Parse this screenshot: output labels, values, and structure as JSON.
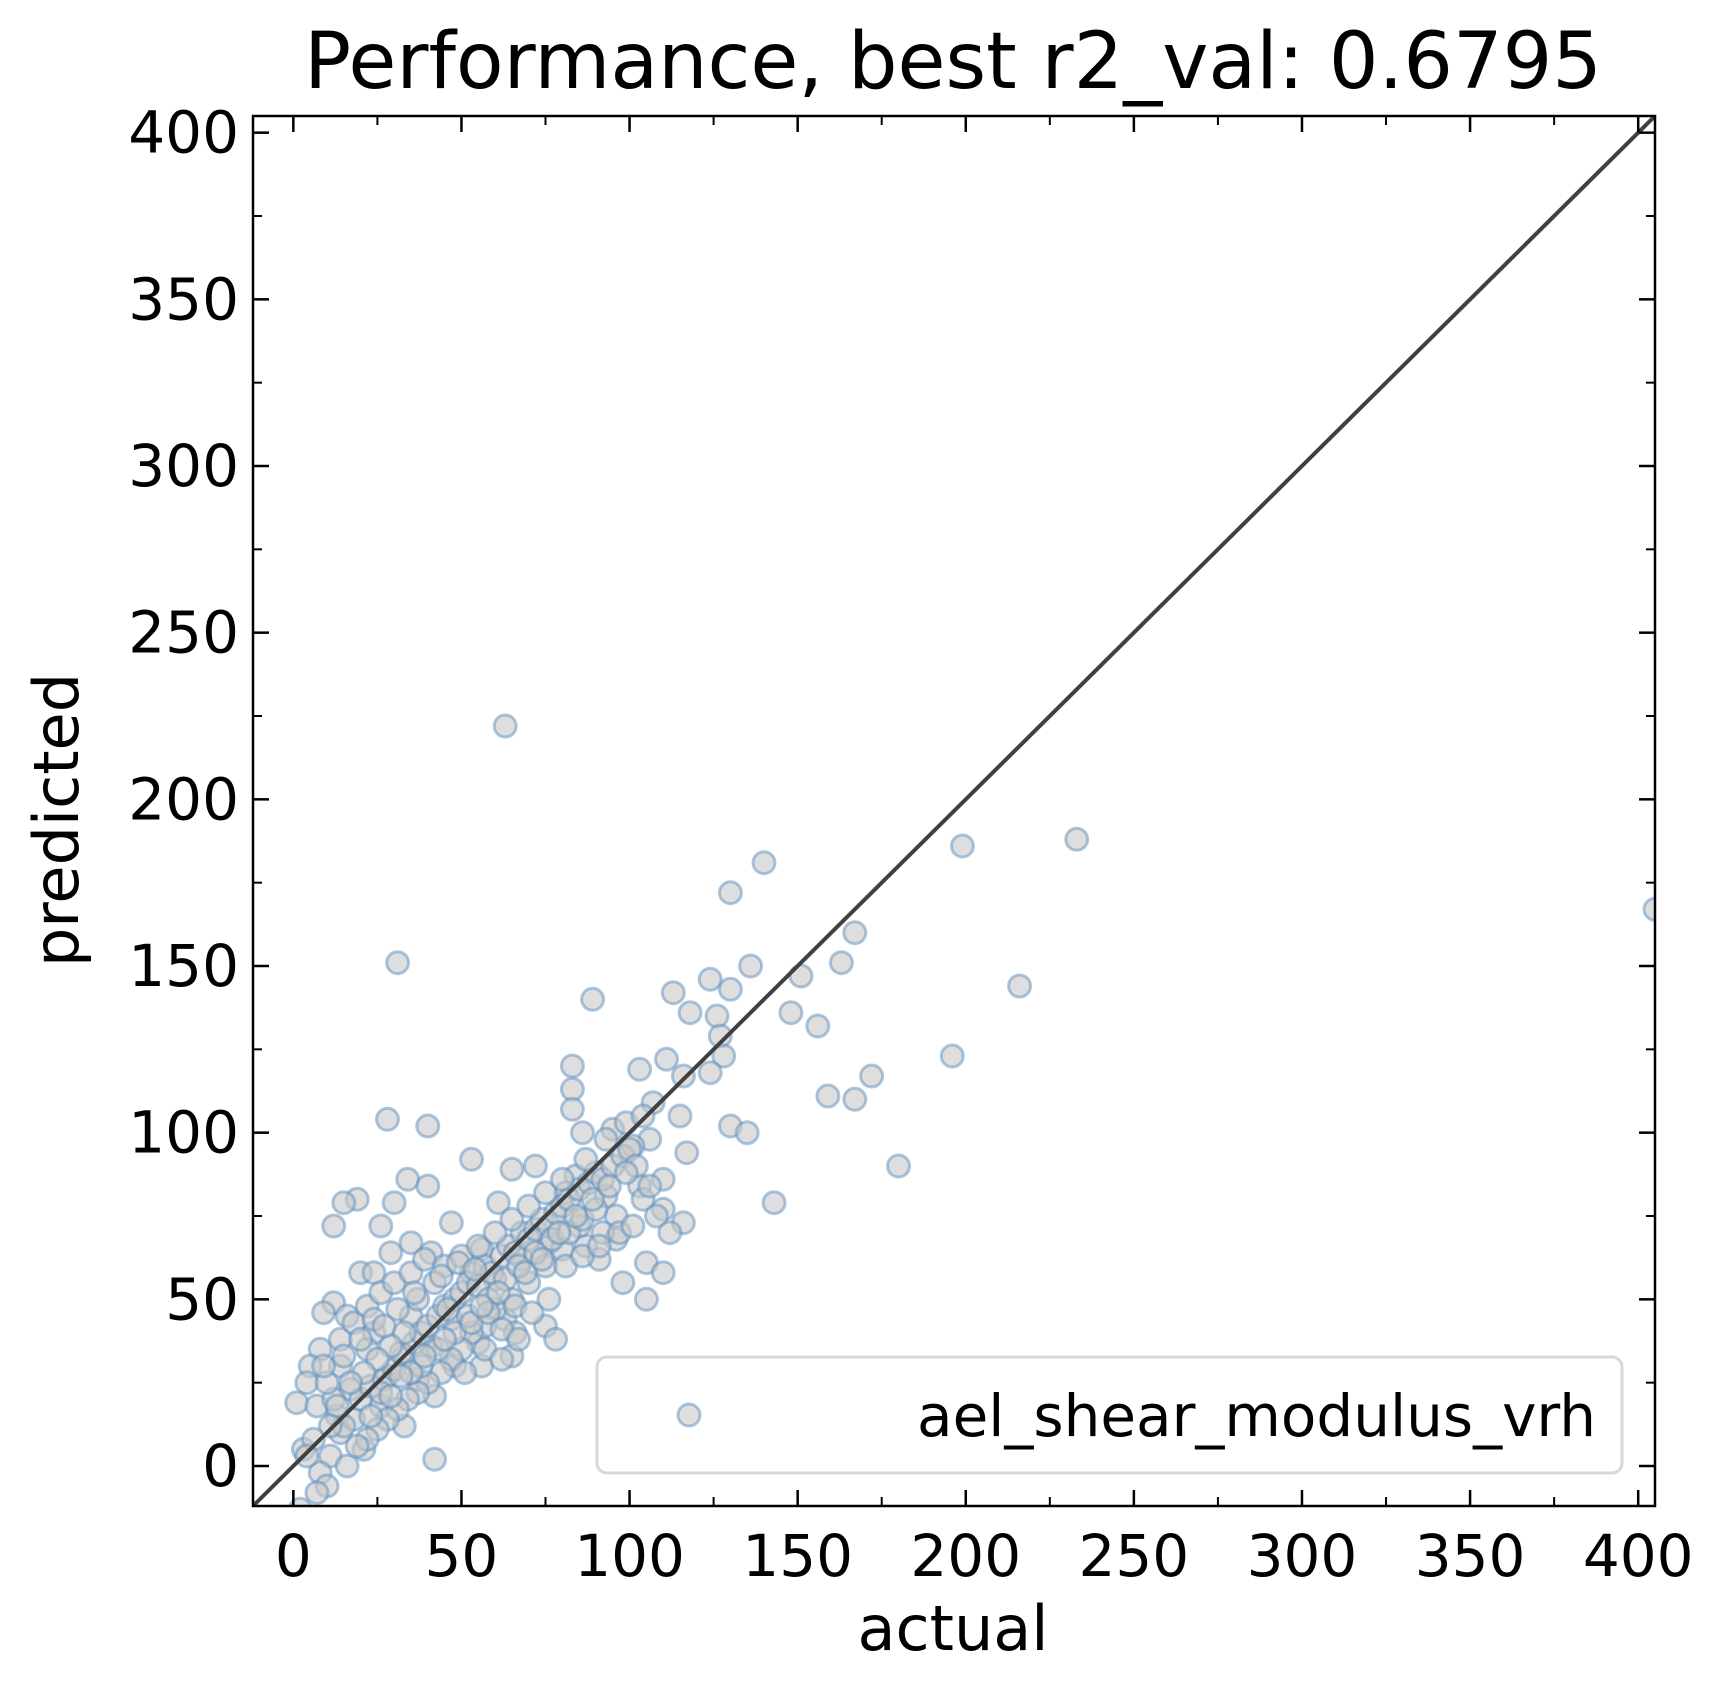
{
  "chart_data": {
    "type": "scatter",
    "title": "Performance, best r2_val: 0.6795",
    "xlabel": "actual",
    "ylabel": "predicted",
    "xlim": [
      -12,
      405
    ],
    "ylim": [
      -12,
      405
    ],
    "xticks": [
      0,
      50,
      100,
      150,
      200,
      250,
      300,
      350,
      400
    ],
    "yticks": [
      0,
      50,
      100,
      150,
      200,
      250,
      300,
      350,
      400
    ],
    "xticks_labels": [
      "0",
      "50",
      "100",
      "150",
      "200",
      "250",
      "300",
      "350",
      "400"
    ],
    "yticks_labels": [
      "0",
      "50",
      "100",
      "150",
      "200",
      "250",
      "300",
      "350",
      "400"
    ],
    "grid": false,
    "legend_position": "lower-right",
    "colors": {
      "marker_fill": "#c8c8c8",
      "marker_edge": "#5b8fbf",
      "identity_line": "#404040",
      "axes": "#000000"
    },
    "identity_line": true,
    "series": [
      {
        "name": "ael_shear_modulus_vrh",
        "points": [
          [
            63,
            222
          ],
          [
            233,
            188
          ],
          [
            199,
            186
          ],
          [
            140,
            181
          ],
          [
            130,
            172
          ],
          [
            405,
            167
          ],
          [
            167,
            160
          ],
          [
            163,
            151
          ],
          [
            136,
            150
          ],
          [
            31,
            151
          ],
          [
            151,
            147
          ],
          [
            124,
            146
          ],
          [
            216,
            144
          ],
          [
            130,
            143
          ],
          [
            113,
            142
          ],
          [
            89,
            140
          ],
          [
            118,
            136
          ],
          [
            148,
            136
          ],
          [
            126,
            135
          ],
          [
            156,
            132
          ],
          [
            127,
            129
          ],
          [
            128,
            123
          ],
          [
            196,
            123
          ],
          [
            111,
            122
          ],
          [
            83,
            120
          ],
          [
            103,
            119
          ],
          [
            124,
            118
          ],
          [
            116,
            117
          ],
          [
            172,
            117
          ],
          [
            83,
            113
          ],
          [
            159,
            111
          ],
          [
            167,
            110
          ],
          [
            107,
            109
          ],
          [
            83,
            107
          ],
          [
            115,
            105
          ],
          [
            28,
            104
          ],
          [
            40,
            102
          ],
          [
            130,
            102
          ],
          [
            95,
            101
          ],
          [
            86,
            100
          ],
          [
            135,
            100
          ],
          [
            106,
            98
          ],
          [
            101,
            96
          ],
          [
            117,
            94
          ],
          [
            53,
            92
          ],
          [
            72,
            90
          ],
          [
            180,
            90
          ],
          [
            65,
            89
          ],
          [
            84,
            87
          ],
          [
            110,
            86
          ],
          [
            34,
            86
          ],
          [
            40,
            84
          ],
          [
            103,
            84
          ],
          [
            81,
            82
          ],
          [
            93,
            81
          ],
          [
            19,
            80
          ],
          [
            15,
            79
          ],
          [
            30,
            79
          ],
          [
            61,
            79
          ],
          [
            143,
            79
          ],
          [
            110,
            77
          ],
          [
            47,
            73
          ],
          [
            12,
            72
          ],
          [
            26,
            72
          ],
          [
            116,
            73
          ],
          [
            96,
            68
          ],
          [
            76,
            67
          ],
          [
            35,
            67
          ],
          [
            87,
            66
          ],
          [
            56,
            65
          ],
          [
            29,
            64
          ],
          [
            41,
            64
          ],
          [
            68,
            62
          ],
          [
            91,
            62
          ],
          [
            105,
            61
          ],
          [
            110,
            58
          ],
          [
            20,
            58
          ],
          [
            24,
            58
          ],
          [
            53,
            58
          ],
          [
            60,
            56
          ],
          [
            98,
            55
          ],
          [
            12,
            49
          ],
          [
            105,
            50
          ],
          [
            9,
            46
          ],
          [
            16,
            45
          ],
          [
            35,
            45
          ],
          [
            47,
            44
          ],
          [
            63,
            44
          ],
          [
            75,
            42
          ],
          [
            24,
            40
          ],
          [
            78,
            38
          ],
          [
            55,
            37
          ],
          [
            66,
            40
          ],
          [
            41,
            36
          ],
          [
            8,
            35
          ],
          [
            22,
            35
          ],
          [
            65,
            33
          ],
          [
            33,
            33
          ],
          [
            5,
            30
          ],
          [
            14,
            30
          ],
          [
            48,
            30
          ],
          [
            56,
            30
          ],
          [
            28,
            27
          ],
          [
            37,
            26
          ],
          [
            4,
            25
          ],
          [
            17,
            23
          ],
          [
            42,
            21
          ],
          [
            1,
            19
          ],
          [
            7,
            18
          ],
          [
            26,
            18
          ],
          [
            13,
            15
          ],
          [
            33,
            12
          ],
          [
            3,
            5
          ],
          [
            21,
            5
          ],
          [
            11,
            3
          ],
          [
            42,
            2
          ],
          [
            16,
            0
          ],
          [
            8,
            -2
          ],
          [
            10,
            -6
          ],
          [
            7,
            -8
          ],
          [
            2,
            -13
          ],
          [
            14,
            10
          ],
          [
            18,
            14
          ],
          [
            20,
            20
          ],
          [
            23,
            24
          ],
          [
            27,
            26
          ],
          [
            30,
            29
          ],
          [
            32,
            34
          ],
          [
            36,
            37
          ],
          [
            38,
            40
          ],
          [
            40,
            42
          ],
          [
            43,
            45
          ],
          [
            45,
            48
          ],
          [
            48,
            50
          ],
          [
            50,
            52
          ],
          [
            52,
            55
          ],
          [
            55,
            54
          ],
          [
            57,
            60
          ],
          [
            59,
            58
          ],
          [
            62,
            63
          ],
          [
            64,
            66
          ],
          [
            66,
            64
          ],
          [
            68,
            70
          ],
          [
            70,
            68
          ],
          [
            72,
            71
          ],
          [
            74,
            74
          ],
          [
            76,
            72
          ],
          [
            78,
            76
          ],
          [
            80,
            78
          ],
          [
            82,
            80
          ],
          [
            85,
            83
          ],
          [
            88,
            85
          ],
          [
            90,
            88
          ],
          [
            92,
            86
          ],
          [
            95,
            90
          ],
          [
            98,
            93
          ],
          [
            100,
            95
          ],
          [
            102,
            90
          ],
          [
            104,
            80
          ],
          [
            108,
            75
          ],
          [
            112,
            70
          ],
          [
            96,
            75
          ],
          [
            92,
            70
          ],
          [
            85,
            72
          ],
          [
            80,
            65
          ],
          [
            75,
            60
          ],
          [
            70,
            55
          ],
          [
            65,
            50
          ],
          [
            60,
            47
          ],
          [
            57,
            42
          ],
          [
            53,
            40
          ],
          [
            50,
            35
          ],
          [
            47,
            32
          ],
          [
            44,
            28
          ],
          [
            40,
            25
          ],
          [
            37,
            22
          ],
          [
            34,
            20
          ],
          [
            31,
            17
          ],
          [
            28,
            14
          ],
          [
            25,
            11
          ],
          [
            22,
            8
          ],
          [
            19,
            6
          ],
          [
            15,
            12
          ],
          [
            12,
            20
          ],
          [
            10,
            25
          ],
          [
            9,
            30
          ],
          [
            14,
            38
          ],
          [
            18,
            43
          ],
          [
            22,
            48
          ],
          [
            26,
            52
          ],
          [
            30,
            55
          ],
          [
            35,
            58
          ],
          [
            39,
            62
          ],
          [
            45,
            60
          ],
          [
            50,
            63
          ],
          [
            55,
            66
          ],
          [
            60,
            70
          ],
          [
            65,
            74
          ],
          [
            70,
            78
          ],
          [
            75,
            82
          ],
          [
            80,
            86
          ],
          [
            87,
            92
          ],
          [
            93,
            98
          ],
          [
            99,
            103
          ],
          [
            104,
            105
          ],
          [
            37,
            50
          ],
          [
            42,
            55
          ],
          [
            46,
            47
          ],
          [
            52,
            45
          ],
          [
            58,
            50
          ],
          [
            63,
            56
          ],
          [
            67,
            60
          ],
          [
            72,
            64
          ],
          [
            77,
            68
          ],
          [
            82,
            70
          ],
          [
            86,
            74
          ],
          [
            90,
            77
          ],
          [
            33,
            40
          ],
          [
            29,
            36
          ],
          [
            25,
            32
          ],
          [
            21,
            28
          ],
          [
            17,
            25
          ],
          [
            13,
            18
          ],
          [
            11,
            12
          ],
          [
            6,
            8
          ],
          [
            4,
            3
          ],
          [
            24,
            44
          ],
          [
            31,
            47
          ],
          [
            36,
            52
          ],
          [
            44,
            57
          ],
          [
            49,
            61
          ],
          [
            54,
            59
          ],
          [
            61,
            52
          ],
          [
            66,
            48
          ],
          [
            71,
            46
          ],
          [
            76,
            50
          ],
          [
            81,
            60
          ],
          [
            86,
            63
          ],
          [
            91,
            66
          ],
          [
            97,
            70
          ],
          [
            101,
            72
          ],
          [
            106,
            84
          ],
          [
            38,
            30
          ],
          [
            43,
            35
          ],
          [
            48,
            40
          ],
          [
            53,
            43
          ],
          [
            58,
            46
          ],
          [
            62,
            41
          ],
          [
            67,
            38
          ],
          [
            27,
            42
          ],
          [
            20,
            38
          ],
          [
            15,
            33
          ],
          [
            35,
            28
          ],
          [
            39,
            33
          ],
          [
            51,
            28
          ],
          [
            57,
            35
          ],
          [
            62,
            32
          ],
          [
            23,
            15
          ],
          [
            26,
            22
          ],
          [
            29,
            21
          ],
          [
            32,
            27
          ],
          [
            45,
            38
          ],
          [
            56,
            48
          ],
          [
            69,
            58
          ],
          [
            74,
            62
          ],
          [
            79,
            70
          ],
          [
            84,
            75
          ],
          [
            89,
            80
          ],
          [
            94,
            84
          ],
          [
            99,
            88
          ]
        ]
      }
    ]
  }
}
